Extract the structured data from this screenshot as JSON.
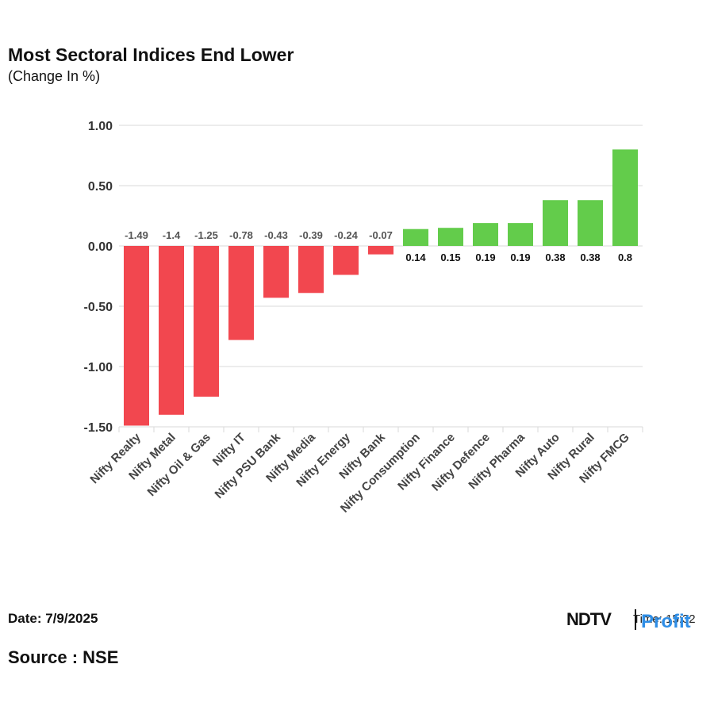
{
  "header": {
    "title": "Most Sectoral Indices End Lower",
    "subtitle": "(Change In %)"
  },
  "footer": {
    "date": "Date: 7/9/2025",
    "source": "Source : NSE",
    "logo_brand": "NDTV",
    "logo_sub": "Profit",
    "time": "Time: 15:32"
  },
  "colors": {
    "negative": "#f2474f",
    "positive": "#63cc4b",
    "grid": "#d9d9d9",
    "negative_label": "#555555",
    "positive_label": "#111111"
  },
  "chart_data": {
    "type": "bar",
    "categories": [
      "Nifty Realty",
      "Nifty Metal",
      "Nifty Oil & Gas",
      "Nifty IT",
      "Nifty PSU Bank",
      "Nifty Media",
      "Nifty Energy",
      "Nifty Bank",
      "Nifty Consumption",
      "Nifty Finance",
      "Nifty Defence",
      "Nifty Pharma",
      "Nifty Auto",
      "Nifty Rural",
      "Nifty FMCG"
    ],
    "values": [
      -1.49,
      -1.4,
      -1.25,
      -0.78,
      -0.43,
      -0.39,
      -0.24,
      -0.07,
      0.14,
      0.15,
      0.19,
      0.19,
      0.38,
      0.38,
      0.8
    ],
    "value_labels": [
      "-1.49",
      "-1.4",
      "-1.25",
      "-0.78",
      "-0.43",
      "-0.39",
      "-0.24",
      "-0.07",
      "0.14",
      "0.15",
      "0.19",
      "0.19",
      "0.38",
      "0.38",
      "0.8"
    ],
    "yticks": [
      1.0,
      0.5,
      0.0,
      -0.5,
      -1.0,
      -1.5
    ],
    "ytick_labels": [
      "1.00",
      "0.50",
      "0.00",
      "-0.50",
      "-1.00",
      "-1.50"
    ],
    "ylim": [
      -1.5,
      1.0
    ],
    "grid": true,
    "legend": "none"
  }
}
